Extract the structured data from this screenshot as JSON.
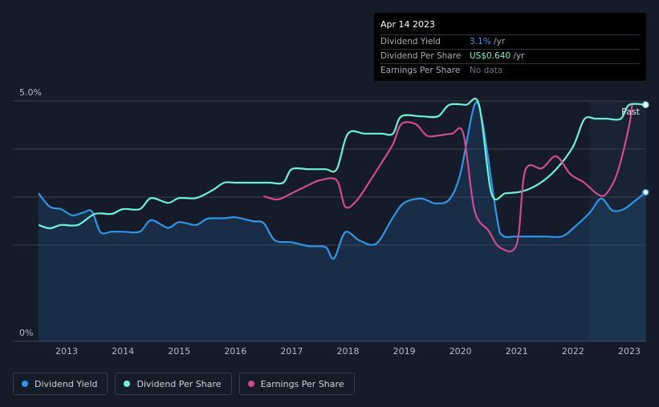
{
  "tooltip": {
    "date": "Apr 14 2023",
    "rows": [
      {
        "label": "Dividend Yield",
        "value": "3.1%",
        "unit": " /yr"
      },
      {
        "label": "Dividend Per Share",
        "value": "US$0.640",
        "unit": " /yr"
      },
      {
        "label": "Earnings Per Share",
        "value": "No data",
        "unit": ""
      }
    ]
  },
  "legend": [
    {
      "label": "Dividend Yield",
      "color": "#2f95e8"
    },
    {
      "label": "Dividend Per Share",
      "color": "#6ff1d5"
    },
    {
      "label": "Earnings Per Share",
      "color": "#d14b8f"
    }
  ],
  "colors": {
    "background": "#151b28",
    "yield": "#2f95e8",
    "dps": "#6ff1d5",
    "eps": "#d14b8f",
    "grid": "#3a3f4a",
    "axis_text": "#b8bcc4"
  },
  "chart_data": {
    "type": "line",
    "xlim": [
      2012.5,
      2023.3
    ],
    "ylim": [
      0,
      5.0
    ],
    "y_tick_labels": [
      {
        "value": 5.0,
        "label": "5.0%"
      },
      {
        "value": 0,
        "label": "0%"
      }
    ],
    "x_ticks": [
      2013,
      2014,
      2015,
      2016,
      2017,
      2018,
      2019,
      2020,
      2021,
      2022,
      2023
    ],
    "past_label": "Past",
    "past_start": 2022.29,
    "grid": true,
    "series": [
      {
        "name": "Dividend Yield",
        "key": "yield",
        "area": true,
        "points": [
          [
            2012.5,
            3.08
          ],
          [
            2012.7,
            2.8
          ],
          [
            2012.9,
            2.75
          ],
          [
            2013.1,
            2.62
          ],
          [
            2013.3,
            2.68
          ],
          [
            2013.45,
            2.7
          ],
          [
            2013.6,
            2.27
          ],
          [
            2013.8,
            2.28
          ],
          [
            2014.0,
            2.28
          ],
          [
            2014.3,
            2.28
          ],
          [
            2014.5,
            2.52
          ],
          [
            2014.8,
            2.36
          ],
          [
            2015.0,
            2.48
          ],
          [
            2015.3,
            2.42
          ],
          [
            2015.5,
            2.55
          ],
          [
            2015.8,
            2.56
          ],
          [
            2016.0,
            2.58
          ],
          [
            2016.3,
            2.5
          ],
          [
            2016.5,
            2.46
          ],
          [
            2016.7,
            2.1
          ],
          [
            2017.0,
            2.06
          ],
          [
            2017.3,
            1.98
          ],
          [
            2017.6,
            1.96
          ],
          [
            2017.75,
            1.72
          ],
          [
            2017.95,
            2.27
          ],
          [
            2018.2,
            2.1
          ],
          [
            2018.5,
            2.03
          ],
          [
            2018.8,
            2.58
          ],
          [
            2019.0,
            2.88
          ],
          [
            2019.3,
            2.97
          ],
          [
            2019.55,
            2.87
          ],
          [
            2019.8,
            2.95
          ],
          [
            2020.0,
            3.5
          ],
          [
            2020.25,
            4.92
          ],
          [
            2020.4,
            4.5
          ],
          [
            2020.65,
            2.55
          ],
          [
            2020.75,
            2.2
          ],
          [
            2021.0,
            2.18
          ],
          [
            2021.5,
            2.18
          ],
          [
            2021.8,
            2.18
          ],
          [
            2022.0,
            2.35
          ],
          [
            2022.3,
            2.68
          ],
          [
            2022.5,
            2.97
          ],
          [
            2022.7,
            2.72
          ],
          [
            2022.9,
            2.75
          ],
          [
            2023.1,
            2.92
          ],
          [
            2023.29,
            3.1
          ]
        ]
      },
      {
        "name": "Dividend Per Share",
        "key": "dps",
        "area": false,
        "points": [
          [
            2012.5,
            2.42
          ],
          [
            2012.7,
            2.35
          ],
          [
            2012.9,
            2.42
          ],
          [
            2013.2,
            2.42
          ],
          [
            2013.5,
            2.65
          ],
          [
            2013.8,
            2.65
          ],
          [
            2014.0,
            2.75
          ],
          [
            2014.3,
            2.75
          ],
          [
            2014.5,
            2.98
          ],
          [
            2014.8,
            2.88
          ],
          [
            2015.0,
            2.98
          ],
          [
            2015.3,
            2.98
          ],
          [
            2015.6,
            3.15
          ],
          [
            2015.8,
            3.3
          ],
          [
            2016.0,
            3.3
          ],
          [
            2016.3,
            3.3
          ],
          [
            2016.6,
            3.3
          ],
          [
            2016.85,
            3.3
          ],
          [
            2017.0,
            3.58
          ],
          [
            2017.3,
            3.58
          ],
          [
            2017.6,
            3.58
          ],
          [
            2017.8,
            3.58
          ],
          [
            2018.0,
            4.32
          ],
          [
            2018.3,
            4.32
          ],
          [
            2018.6,
            4.32
          ],
          [
            2018.8,
            4.32
          ],
          [
            2018.95,
            4.68
          ],
          [
            2019.3,
            4.68
          ],
          [
            2019.6,
            4.68
          ],
          [
            2019.8,
            4.92
          ],
          [
            2020.1,
            4.92
          ],
          [
            2020.33,
            4.92
          ],
          [
            2020.55,
            3.08
          ],
          [
            2020.8,
            3.08
          ],
          [
            2021.1,
            3.12
          ],
          [
            2021.4,
            3.28
          ],
          [
            2021.7,
            3.58
          ],
          [
            2022.0,
            4.05
          ],
          [
            2022.2,
            4.62
          ],
          [
            2022.4,
            4.63
          ],
          [
            2022.6,
            4.63
          ],
          [
            2022.85,
            4.63
          ],
          [
            2023.0,
            4.92
          ],
          [
            2023.29,
            4.92
          ]
        ]
      },
      {
        "name": "Earnings Per Share",
        "key": "eps",
        "area": false,
        "points": [
          [
            2016.5,
            3.02
          ],
          [
            2016.75,
            2.95
          ],
          [
            2017.0,
            3.08
          ],
          [
            2017.3,
            3.25
          ],
          [
            2017.5,
            3.35
          ],
          [
            2017.8,
            3.35
          ],
          [
            2017.95,
            2.8
          ],
          [
            2018.15,
            2.92
          ],
          [
            2018.4,
            3.35
          ],
          [
            2018.6,
            3.72
          ],
          [
            2018.8,
            4.1
          ],
          [
            2018.95,
            4.52
          ],
          [
            2019.2,
            4.52
          ],
          [
            2019.4,
            4.28
          ],
          [
            2019.6,
            4.28
          ],
          [
            2019.85,
            4.32
          ],
          [
            2020.05,
            4.32
          ],
          [
            2020.25,
            2.72
          ],
          [
            2020.5,
            2.3
          ],
          [
            2020.7,
            1.95
          ],
          [
            2021.0,
            2.02
          ],
          [
            2021.15,
            3.55
          ],
          [
            2021.45,
            3.6
          ],
          [
            2021.7,
            3.85
          ],
          [
            2021.95,
            3.48
          ],
          [
            2022.2,
            3.3
          ],
          [
            2022.45,
            3.05
          ],
          [
            2022.6,
            3.08
          ],
          [
            2022.8,
            3.55
          ],
          [
            2023.0,
            4.5
          ],
          [
            2023.05,
            4.92
          ]
        ]
      }
    ]
  }
}
